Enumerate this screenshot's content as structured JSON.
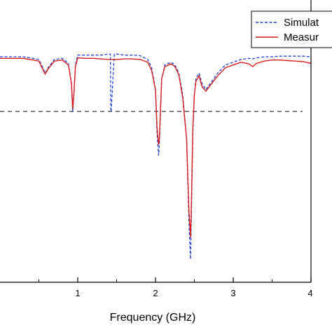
{
  "chart_data": {
    "type": "line",
    "xlabel": "Frequency (GHz)",
    "ylabel": "",
    "xlim": [
      0,
      4
    ],
    "ylim": [
      -50,
      0
    ],
    "x_ticks": [
      1,
      2,
      3,
      4
    ],
    "x_tick_labels": [
      "1",
      "2",
      "3",
      "4"
    ],
    "legend_position": "top-right",
    "reference_line": {
      "y": -10,
      "style": "dashed",
      "color": "#000000"
    },
    "series": [
      {
        "name": "Simulat",
        "style": "dashed",
        "color": "#1f3fd6",
        "x": [
          0,
          0.3,
          0.5,
          0.55,
          0.58,
          0.62,
          0.7,
          0.8,
          0.88,
          0.92,
          0.935,
          0.95,
          0.97,
          1.0,
          1.1,
          1.2,
          1.3,
          1.4,
          1.42,
          1.425,
          1.43,
          1.47,
          1.5,
          1.6,
          1.7,
          1.8,
          1.9,
          1.95,
          2.0,
          2.02,
          2.04,
          2.05,
          2.06,
          2.08,
          2.12,
          2.2,
          2.25,
          2.3,
          2.35,
          2.4,
          2.43,
          2.45,
          2.46,
          2.48,
          2.5,
          2.52,
          2.56,
          2.6,
          2.65,
          2.7,
          2.8,
          2.9,
          3.0,
          3.1,
          3.2,
          3.25,
          3.3,
          3.4,
          3.5,
          3.6,
          3.7,
          3.8,
          3.9,
          4.0
        ],
        "y": [
          0,
          0,
          -0.5,
          -2,
          -3,
          -2,
          -0.5,
          -0.3,
          -1.2,
          -5,
          -10,
          -7,
          -1.5,
          0.3,
          0.3,
          0.3,
          0.3,
          0.5,
          0.5,
          -10,
          -10,
          0.5,
          0.5,
          0.3,
          0.3,
          0.2,
          -0.5,
          -2,
          -6,
          -14,
          -18,
          -16,
          -12,
          -4,
          -1.5,
          -1,
          -1.5,
          -3,
          -7,
          -15,
          -30,
          -37,
          -30,
          -14,
          -7,
          -4,
          -3,
          -5,
          -6,
          -5,
          -3,
          -1.5,
          -1,
          -0.5,
          -0.3,
          -0.4,
          -0.2,
          0,
          0,
          0.1,
          0.1,
          0.1,
          0.1,
          0
        ]
      },
      {
        "name": "Measur",
        "style": "solid",
        "color": "#d81c1c",
        "x": [
          0,
          0.3,
          0.5,
          0.55,
          0.58,
          0.62,
          0.7,
          0.8,
          0.88,
          0.92,
          0.935,
          0.95,
          0.97,
          1.0,
          1.1,
          1.2,
          1.3,
          1.4,
          1.5,
          1.6,
          1.7,
          1.8,
          1.9,
          1.95,
          2.0,
          2.02,
          2.04,
          2.05,
          2.06,
          2.08,
          2.12,
          2.2,
          2.25,
          2.3,
          2.35,
          2.4,
          2.43,
          2.45,
          2.46,
          2.48,
          2.5,
          2.52,
          2.56,
          2.6,
          2.65,
          2.7,
          2.8,
          2.9,
          3.0,
          3.1,
          3.2,
          3.25,
          3.3,
          3.4,
          3.5,
          3.6,
          3.7,
          3.8,
          3.9,
          4.0
        ],
        "y": [
          -0.3,
          -0.3,
          -0.8,
          -2.3,
          -3.2,
          -2.2,
          -0.8,
          -0.6,
          -1.5,
          -5,
          -9.5,
          -7,
          -1.8,
          -0.2,
          -0.3,
          -0.3,
          -0.4,
          -0.5,
          -0.5,
          -0.4,
          -0.4,
          -0.5,
          -1,
          -2.5,
          -6,
          -13,
          -16,
          -15,
          -11,
          -4,
          -1.8,
          -1.3,
          -1.8,
          -3.3,
          -7.5,
          -15,
          -28,
          -33,
          -28,
          -13,
          -7,
          -4.5,
          -3.5,
          -5.5,
          -6.3,
          -5.3,
          -3.5,
          -2,
          -1.5,
          -1,
          -1.3,
          -1.8,
          -1.2,
          -0.8,
          -0.6,
          -0.6,
          -0.7,
          -0.8,
          -0.9,
          -1.2
        ]
      }
    ]
  }
}
